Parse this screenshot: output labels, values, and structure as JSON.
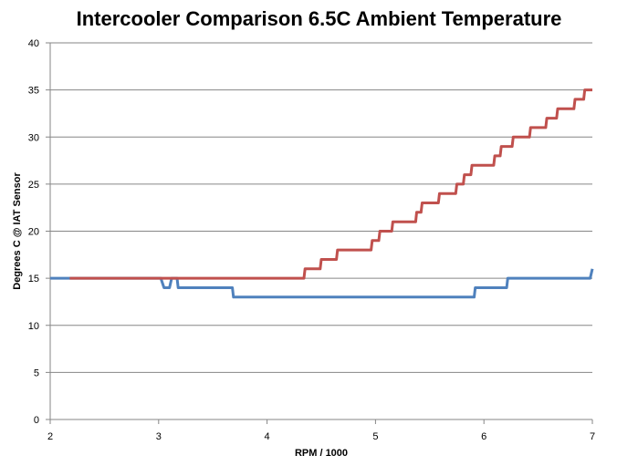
{
  "chart_data": {
    "type": "line",
    "title": "Intercooler Comparison 6.5C Ambient Temperature",
    "xlabel": "RPM / 1000",
    "ylabel": "Degrees C @ IAT Sensor",
    "xlim": [
      2,
      7
    ],
    "ylim": [
      0,
      40
    ],
    "x_ticks": [
      2,
      3,
      4,
      5,
      6,
      7
    ],
    "y_ticks": [
      0,
      5,
      10,
      15,
      20,
      25,
      30,
      35,
      40
    ],
    "grid": "horizontal",
    "legend": "none",
    "series": [
      {
        "color": "#4F81BD",
        "points": [
          [
            2.0,
            15
          ],
          [
            3.02,
            15
          ],
          [
            3.05,
            14
          ],
          [
            3.1,
            14
          ],
          [
            3.12,
            15
          ],
          [
            3.17,
            15
          ],
          [
            3.18,
            14
          ],
          [
            3.68,
            14
          ],
          [
            3.69,
            13
          ],
          [
            5.91,
            13
          ],
          [
            5.92,
            14
          ],
          [
            6.21,
            14
          ],
          [
            6.22,
            15
          ],
          [
            6.98,
            15
          ],
          [
            7.0,
            16
          ]
        ]
      },
      {
        "color": "#C0504D",
        "points": [
          [
            2.18,
            15
          ],
          [
            4.34,
            15
          ],
          [
            4.35,
            16
          ],
          [
            4.49,
            16
          ],
          [
            4.5,
            17
          ],
          [
            4.64,
            17
          ],
          [
            4.65,
            18
          ],
          [
            4.96,
            18
          ],
          [
            4.97,
            19
          ],
          [
            5.03,
            19
          ],
          [
            5.04,
            20
          ],
          [
            5.15,
            20
          ],
          [
            5.16,
            21
          ],
          [
            5.37,
            21
          ],
          [
            5.38,
            22
          ],
          [
            5.42,
            22
          ],
          [
            5.43,
            23
          ],
          [
            5.58,
            23
          ],
          [
            5.59,
            24
          ],
          [
            5.74,
            24
          ],
          [
            5.75,
            25
          ],
          [
            5.81,
            25
          ],
          [
            5.82,
            26
          ],
          [
            5.88,
            26
          ],
          [
            5.89,
            27
          ],
          [
            6.09,
            27
          ],
          [
            6.1,
            28
          ],
          [
            6.15,
            28
          ],
          [
            6.16,
            29
          ],
          [
            6.26,
            29
          ],
          [
            6.27,
            30
          ],
          [
            6.42,
            30
          ],
          [
            6.43,
            31
          ],
          [
            6.57,
            31
          ],
          [
            6.58,
            32
          ],
          [
            6.67,
            32
          ],
          [
            6.68,
            33
          ],
          [
            6.83,
            33
          ],
          [
            6.84,
            34
          ],
          [
            6.92,
            34
          ],
          [
            6.93,
            35
          ],
          [
            7.0,
            35
          ]
        ]
      }
    ]
  }
}
